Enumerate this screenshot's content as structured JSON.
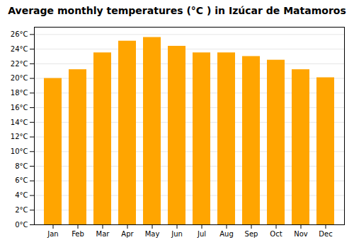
{
  "chart_data": {
    "type": "bar",
    "title": "Average monthly temperatures (°C ) in Izúcar de Matamoros",
    "categories": [
      "Jan",
      "Feb",
      "Mar",
      "Apr",
      "May",
      "Jun",
      "Jul",
      "Aug",
      "Sep",
      "Oct",
      "Nov",
      "Dec"
    ],
    "values": [
      20.0,
      21.2,
      23.5,
      25.1,
      25.6,
      24.4,
      23.5,
      23.5,
      23.0,
      22.5,
      21.2,
      20.1
    ],
    "color": "#FFA500",
    "ylim": [
      0,
      27
    ],
    "yticks": [
      {
        "value": 0,
        "label": "0°C"
      },
      {
        "value": 2,
        "label": "2°C"
      },
      {
        "value": 4,
        "label": "4°C"
      },
      {
        "value": 6,
        "label": "6°C"
      },
      {
        "value": 8,
        "label": "8°C"
      },
      {
        "value": 10,
        "label": "10°C"
      },
      {
        "value": 12,
        "label": "12°C"
      },
      {
        "value": 14,
        "label": "14°C"
      },
      {
        "value": 16,
        "label": "16°C"
      },
      {
        "value": 18,
        "label": "18°C"
      },
      {
        "value": 20,
        "label": "20°C"
      },
      {
        "value": 22,
        "label": "22°C"
      },
      {
        "value": 24,
        "label": "24°C"
      },
      {
        "value": 26,
        "label": "26°C"
      }
    ],
    "grid": true
  }
}
